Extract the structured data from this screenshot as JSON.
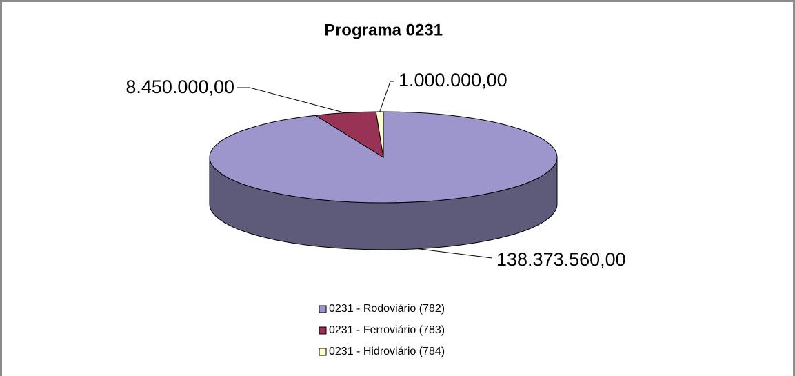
{
  "chart_data": {
    "type": "pie",
    "title": "Programa 0231",
    "categories": [
      "0231 - Rodoviário (782)",
      "0231 - Ferroviário (783)",
      "0231 - Hidroviário (784)"
    ],
    "values": [
      138373560,
      8450000,
      1000000
    ],
    "value_labels": [
      "138.373.560,00",
      "8.450.000,00",
      "1.000.000,00"
    ],
    "colors": [
      "#9c96cc",
      "#993355",
      "#ffffcc"
    ],
    "legend": "bottom"
  }
}
